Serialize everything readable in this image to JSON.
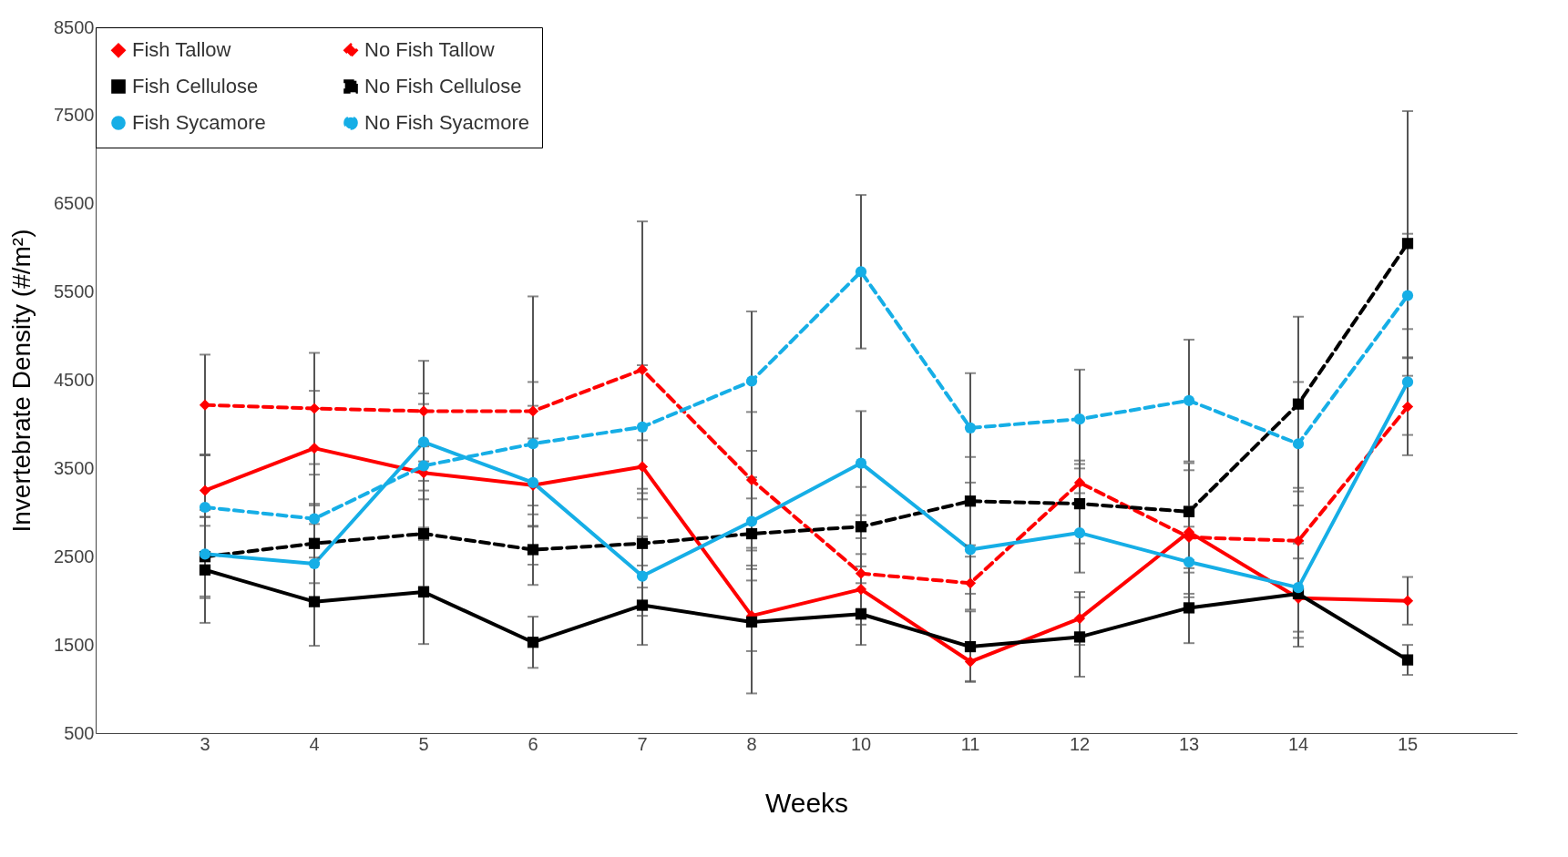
{
  "chart_data": {
    "type": "line",
    "xlabel": "Weeks",
    "ylabel": "Invertebrate Density (#/m²)",
    "categories": [
      "3",
      "4",
      "5",
      "6",
      "7",
      "8",
      "10",
      "11",
      "12",
      "13",
      "14",
      "15"
    ],
    "ylim": [
      500,
      8500
    ],
    "yticks": [
      500,
      1500,
      2500,
      3500,
      4500,
      5500,
      6500,
      7500,
      8500
    ],
    "grid": false,
    "legend": "top left",
    "series": [
      {
        "name": "Fish Tallow",
        "color": "#ff0000",
        "marker": "diamond",
        "line_style": "solid",
        "values": [
          3250,
          3730,
          3450,
          3310,
          3520,
          1830,
          2130,
          1310,
          1800,
          2780,
          2030,
          2000
        ],
        "errors": [
          400,
          650,
          300,
          900,
          300,
          400,
          400,
          220,
          300,
          700,
          450,
          270
        ]
      },
      {
        "name": "No Fish Tallow",
        "color": "#ff0000",
        "marker": "diamond",
        "line_style": "dashed",
        "values": [
          4220,
          4180,
          4150,
          4150,
          4620,
          3370,
          2310,
          2200,
          3340,
          2720,
          2680,
          4200
        ],
        "errors": [
          570,
          630,
          570,
          1300,
          1680,
          770,
          400,
          300,
          250,
          350,
          600,
          550
        ]
      },
      {
        "name": "Fish Cellulose",
        "color": "#000000",
        "marker": "square",
        "line_style": "solid",
        "values": [
          2350,
          1990,
          2100,
          1530,
          1950,
          1760,
          1850,
          1480,
          1590,
          1920,
          2080,
          1330
        ],
        "errors": [
          600,
          500,
          590,
          290,
          450,
          810,
          350,
          400,
          450,
          400,
          600,
          170
        ]
      },
      {
        "name": "No Fish Cellulose",
        "color": "#000000",
        "marker": "square",
        "line_style": "dashed",
        "values": [
          2500,
          2650,
          2760,
          2580,
          2650,
          2760,
          2840,
          3130,
          3100,
          3010,
          4230,
          6050
        ],
        "errors": [
          450,
          450,
          600,
          400,
          500,
          400,
          450,
          500,
          450,
          550,
          990,
          1500
        ]
      },
      {
        "name": "Fish Sycamore",
        "color": "#16aee6",
        "marker": "circle",
        "line_style": "solid",
        "values": [
          2530,
          2420,
          3800,
          3340,
          2280,
          2900,
          3560,
          2580,
          2770,
          2440,
          2150,
          4480
        ],
        "errors": [
          500,
          450,
          550,
          500,
          450,
          500,
          590,
          500,
          450,
          400,
          500,
          600
        ]
      },
      {
        "name": "No Fish Syacmore",
        "color": "#16aee6",
        "marker": "circle",
        "line_style": "dashed",
        "values": [
          3060,
          2930,
          3530,
          3780,
          3970,
          4490,
          5730,
          3960,
          4060,
          4270,
          3780,
          5460
        ],
        "errors": [
          600,
          500,
          700,
          700,
          700,
          790,
          870,
          620,
          560,
          690,
          700,
          700
        ]
      }
    ]
  }
}
